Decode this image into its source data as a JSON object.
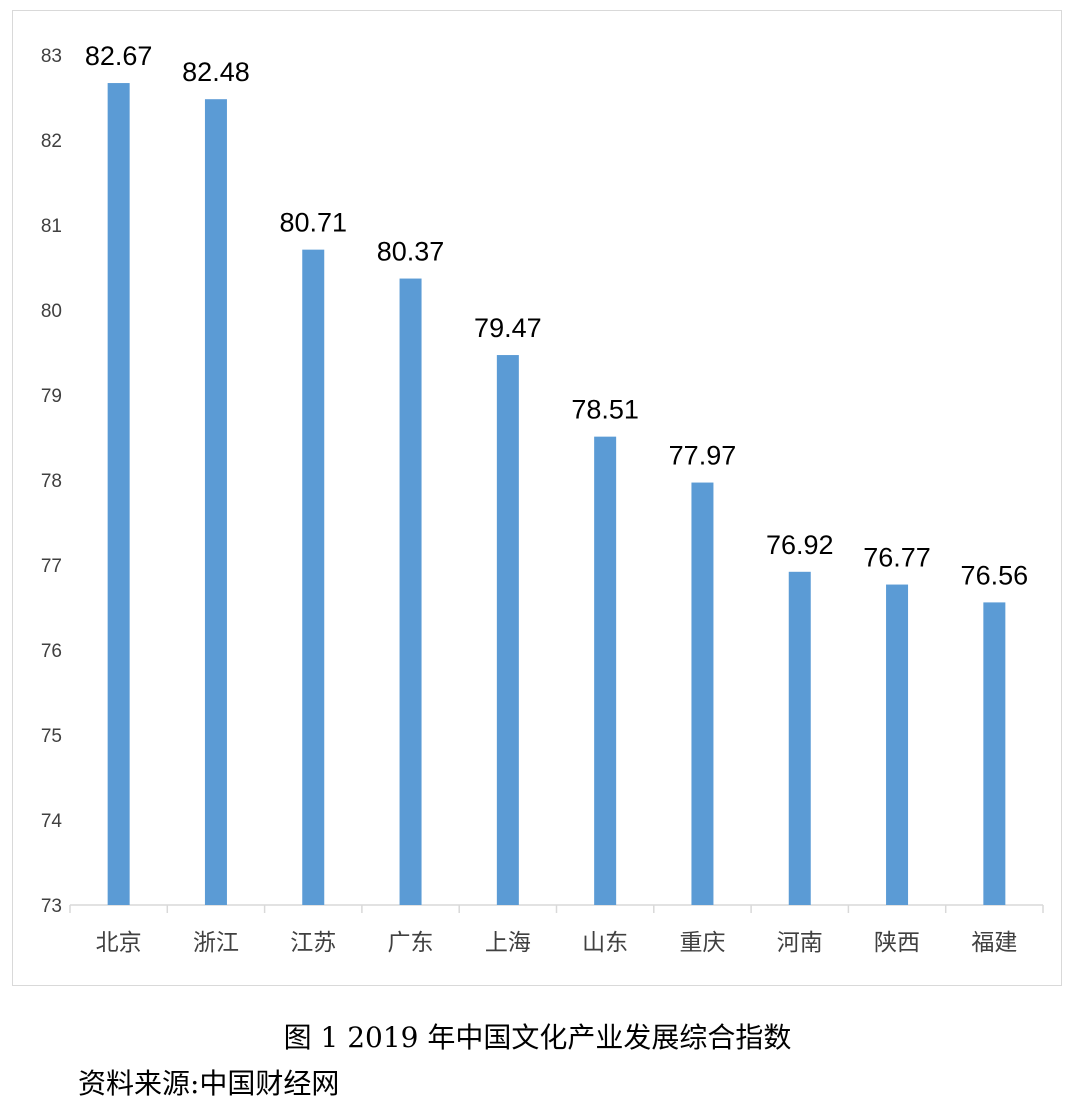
{
  "chart_data": {
    "type": "bar",
    "categories": [
      "北京",
      "浙江",
      "江苏",
      "广东",
      "上海",
      "山东",
      "重庆",
      "河南",
      "陕西",
      "福建"
    ],
    "values": [
      82.67,
      82.48,
      80.71,
      80.37,
      79.47,
      78.51,
      77.97,
      76.92,
      76.77,
      76.56
    ],
    "data_labels": [
      "82.67",
      "82.48",
      "80.71",
      "80.37",
      "79.47",
      "78.51",
      "77.97",
      "76.92",
      "76.77",
      "76.56"
    ],
    "ylim": [
      73,
      83
    ],
    "yticks": [
      73,
      74,
      75,
      76,
      77,
      78,
      79,
      80,
      81,
      82,
      83
    ],
    "xlabel": "",
    "ylabel": "",
    "grid": false,
    "legend": "none",
    "bar_color": "#5b9bd5",
    "axis_color": "#d9d9d9"
  },
  "caption": "图 1  2019 年中国文化产业发展综合指数",
  "source": "资料来源:中国财经网"
}
